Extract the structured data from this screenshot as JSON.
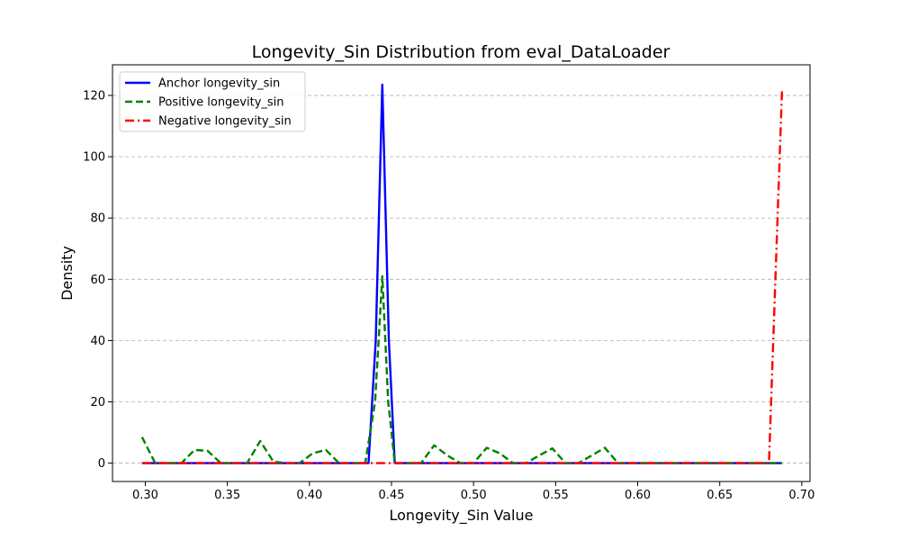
{
  "chart_data": {
    "type": "line",
    "title": "Longevity_Sin Distribution from eval_DataLoader",
    "xlabel": "Longevity_Sin Value",
    "ylabel": "Density",
    "xlim": [
      0.28,
      0.705
    ],
    "ylim": [
      -6,
      130
    ],
    "xticks": [
      0.3,
      0.35,
      0.4,
      0.45,
      0.5,
      0.55,
      0.6,
      0.65,
      0.7
    ],
    "xtick_labels": [
      "0.30",
      "0.35",
      "0.40",
      "0.45",
      "0.50",
      "0.55",
      "0.60",
      "0.65",
      "0.70"
    ],
    "yticks": [
      0,
      20,
      40,
      60,
      80,
      100,
      120
    ],
    "ytick_labels": [
      "0",
      "20",
      "40",
      "60",
      "80",
      "100",
      "120"
    ],
    "grid": "y-dashed",
    "legend_position": "top-left",
    "series": [
      {
        "name": "Anchor longevity_sin",
        "color": "#0000ff",
        "style": "solid",
        "x": [
          0.298,
          0.436,
          0.4404,
          0.4444,
          0.4484,
          0.452,
          0.688
        ],
        "y": [
          0,
          0,
          40,
          123.5,
          40,
          0,
          0
        ]
      },
      {
        "name": "Positive longevity_sin",
        "color": "#008000",
        "style": "dashed",
        "x": [
          0.298,
          0.306,
          0.322,
          0.33,
          0.338,
          0.346,
          0.362,
          0.37,
          0.378,
          0.386,
          0.394,
          0.402,
          0.41,
          0.418,
          0.426,
          0.434,
          0.44,
          0.4444,
          0.448,
          0.452,
          0.46,
          0.468,
          0.476,
          0.484,
          0.492,
          0.5,
          0.508,
          0.516,
          0.524,
          0.532,
          0.54,
          0.548,
          0.556,
          0.564,
          0.572,
          0.58,
          0.588,
          0.596,
          0.688
        ],
        "y": [
          8.5,
          0,
          0,
          4.3,
          4.0,
          0,
          0,
          7.2,
          0.5,
          0,
          0,
          3.2,
          4.3,
          0,
          0,
          0,
          20,
          61,
          20,
          0,
          0,
          0,
          5.8,
          2.5,
          0,
          0,
          5.0,
          3.2,
          0,
          0,
          2.5,
          4.8,
          0,
          0,
          2.5,
          5.0,
          0,
          0,
          0
        ]
      },
      {
        "name": "Negative longevity_sin",
        "color": "#ff0000",
        "style": "dashdot",
        "x": [
          0.298,
          0.68,
          0.688
        ],
        "y": [
          0,
          0,
          122.5
        ]
      }
    ]
  }
}
